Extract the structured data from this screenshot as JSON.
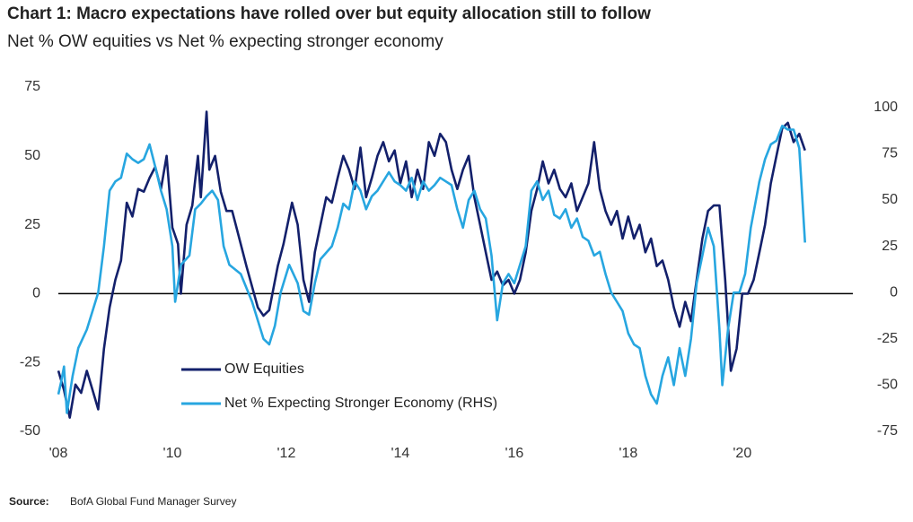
{
  "chart_data": {
    "type": "line",
    "title": "Chart 1: Macro expectations have rolled over but  equity allocation still to follow",
    "subtitle": "Net % OW equities vs Net % expecting stronger economy",
    "source_label": "Source:",
    "source": "BofA Global Fund Manager Survey",
    "xlim": [
      2008,
      2021.2
    ],
    "xticks": [
      {
        "value": 2008,
        "label": "'08"
      },
      {
        "value": 2010,
        "label": "'10"
      },
      {
        "value": 2012,
        "label": "'12"
      },
      {
        "value": 2014,
        "label": "'14"
      },
      {
        "value": 2016,
        "label": "'16"
      },
      {
        "value": 2018,
        "label": "'18"
      },
      {
        "value": 2020,
        "label": "'20"
      }
    ],
    "ylim": [
      -50,
      75
    ],
    "yticks": [
      -50,
      -25,
      0,
      25,
      50,
      75
    ],
    "y2lim": [
      -75,
      111
    ],
    "y2ticks": [
      -75,
      -50,
      -25,
      0,
      25,
      50,
      75,
      100
    ],
    "zero_line": true,
    "series": [
      {
        "name": "OW Equities",
        "color": "#13206b",
        "x": [
          2008.0,
          2008.1,
          2008.2,
          2008.3,
          2008.4,
          2008.5,
          2008.6,
          2008.7,
          2008.8,
          2008.9,
          2009.0,
          2009.1,
          2009.2,
          2009.3,
          2009.4,
          2009.5,
          2009.6,
          2009.7,
          2009.8,
          2009.9,
          2010.0,
          2010.1,
          2010.15,
          2010.25,
          2010.35,
          2010.45,
          2010.5,
          2010.6,
          2010.65,
          2010.75,
          2010.85,
          2010.95,
          2011.05,
          2011.15,
          2011.3,
          2011.5,
          2011.6,
          2011.7,
          2011.85,
          2011.95,
          2012.1,
          2012.2,
          2012.3,
          2012.4,
          2012.5,
          2012.6,
          2012.7,
          2012.8,
          2012.9,
          2013.0,
          2013.1,
          2013.2,
          2013.3,
          2013.4,
          2013.5,
          2013.6,
          2013.7,
          2013.8,
          2013.9,
          2014.0,
          2014.1,
          2014.2,
          2014.3,
          2014.4,
          2014.5,
          2014.6,
          2014.7,
          2014.8,
          2014.9,
          2015.0,
          2015.1,
          2015.2,
          2015.3,
          2015.4,
          2015.5,
          2015.6,
          2015.7,
          2015.8,
          2015.9,
          2016.0,
          2016.1,
          2016.2,
          2016.3,
          2016.4,
          2016.5,
          2016.6,
          2016.7,
          2016.8,
          2016.9,
          2017.0,
          2017.1,
          2017.2,
          2017.3,
          2017.4,
          2017.5,
          2017.6,
          2017.7,
          2017.8,
          2017.9,
          2018.0,
          2018.1,
          2018.2,
          2018.3,
          2018.4,
          2018.5,
          2018.6,
          2018.7,
          2018.8,
          2018.9,
          2019.0,
          2019.1,
          2019.2,
          2019.3,
          2019.4,
          2019.5,
          2019.6,
          2019.7,
          2019.8,
          2019.9,
          2020.0,
          2020.1,
          2020.2,
          2020.3,
          2020.4,
          2020.5,
          2020.6,
          2020.7,
          2020.8,
          2020.9,
          2021.0,
          2021.1
        ],
        "values": [
          -28,
          -35,
          -45,
          -33,
          -36,
          -28,
          -35,
          -42,
          -20,
          -5,
          5,
          12,
          33,
          28,
          38,
          37,
          42,
          46,
          38,
          50,
          24,
          18,
          0,
          25,
          32,
          50,
          35,
          66,
          45,
          50,
          37,
          30,
          30,
          22,
          10,
          -5,
          -8,
          -6,
          10,
          18,
          33,
          25,
          5,
          -3,
          15,
          25,
          35,
          33,
          42,
          50,
          45,
          38,
          53,
          35,
          42,
          50,
          55,
          48,
          52,
          40,
          48,
          35,
          45,
          38,
          55,
          50,
          58,
          55,
          45,
          38,
          45,
          50,
          35,
          25,
          15,
          5,
          8,
          3,
          5,
          0,
          5,
          15,
          30,
          38,
          48,
          40,
          45,
          38,
          35,
          40,
          30,
          35,
          40,
          55,
          38,
          30,
          25,
          30,
          20,
          28,
          20,
          25,
          15,
          20,
          10,
          12,
          5,
          -5,
          -12,
          -3,
          -10,
          5,
          20,
          30,
          32,
          32,
          5,
          -28,
          -20,
          0,
          0,
          5,
          15,
          25,
          40,
          50,
          60,
          62,
          55,
          58,
          52
        ]
      },
      {
        "name": "Net % Expecting Stronger Economy (RHS)",
        "color": "#27a6e0",
        "axis": "y2",
        "x": [
          2008.0,
          2008.05,
          2008.1,
          2008.15,
          2008.25,
          2008.35,
          2008.5,
          2008.6,
          2008.7,
          2008.8,
          2008.9,
          2009.0,
          2009.1,
          2009.2,
          2009.3,
          2009.4,
          2009.5,
          2009.6,
          2009.7,
          2009.8,
          2009.9,
          2010.0,
          2010.05,
          2010.15,
          2010.3,
          2010.4,
          2010.5,
          2010.6,
          2010.7,
          2010.8,
          2010.9,
          2011.0,
          2011.2,
          2011.4,
          2011.6,
          2011.7,
          2011.8,
          2011.9,
          2012.05,
          2012.2,
          2012.3,
          2012.4,
          2012.5,
          2012.6,
          2012.8,
          2012.9,
          2013.0,
          2013.1,
          2013.2,
          2013.3,
          2013.4,
          2013.5,
          2013.6,
          2013.8,
          2013.9,
          2014.0,
          2014.1,
          2014.2,
          2014.3,
          2014.4,
          2014.5,
          2014.6,
          2014.7,
          2014.8,
          2014.9,
          2015.0,
          2015.1,
          2015.2,
          2015.3,
          2015.4,
          2015.5,
          2015.6,
          2015.7,
          2015.8,
          2015.9,
          2016.0,
          2016.1,
          2016.2,
          2016.3,
          2016.4,
          2016.5,
          2016.6,
          2016.7,
          2016.8,
          2016.9,
          2017.0,
          2017.1,
          2017.2,
          2017.3,
          2017.4,
          2017.5,
          2017.6,
          2017.7,
          2017.8,
          2017.9,
          2018.0,
          2018.1,
          2018.2,
          2018.3,
          2018.4,
          2018.5,
          2018.6,
          2018.7,
          2018.8,
          2018.9,
          2019.0,
          2019.1,
          2019.2,
          2019.3,
          2019.4,
          2019.5,
          2019.6,
          2019.65,
          2019.75,
          2019.85,
          2019.95,
          2020.05,
          2020.15,
          2020.3,
          2020.4,
          2020.5,
          2020.6,
          2020.7,
          2020.8,
          2020.9,
          2021.0,
          2021.1
        ],
        "values": [
          -55,
          -48,
          -40,
          -65,
          -45,
          -30,
          -20,
          -10,
          0,
          25,
          55,
          60,
          62,
          75,
          72,
          70,
          72,
          80,
          68,
          55,
          45,
          25,
          -5,
          15,
          20,
          45,
          48,
          52,
          55,
          50,
          25,
          15,
          10,
          -5,
          -25,
          -28,
          -18,
          0,
          15,
          5,
          -10,
          -12,
          5,
          18,
          25,
          35,
          48,
          45,
          60,
          55,
          45,
          52,
          55,
          65,
          60,
          58,
          55,
          62,
          50,
          60,
          55,
          58,
          62,
          60,
          58,
          45,
          35,
          50,
          55,
          45,
          40,
          20,
          -15,
          5,
          10,
          5,
          15,
          25,
          55,
          60,
          50,
          55,
          42,
          40,
          45,
          35,
          40,
          30,
          28,
          20,
          22,
          10,
          0,
          -5,
          -10,
          -22,
          -28,
          -30,
          -45,
          -55,
          -60,
          -45,
          -35,
          -50,
          -30,
          -45,
          -25,
          5,
          20,
          35,
          25,
          -20,
          -50,
          -20,
          0,
          0,
          10,
          35,
          60,
          72,
          80,
          82,
          90,
          88,
          88,
          78,
          27
        ]
      }
    ]
  }
}
